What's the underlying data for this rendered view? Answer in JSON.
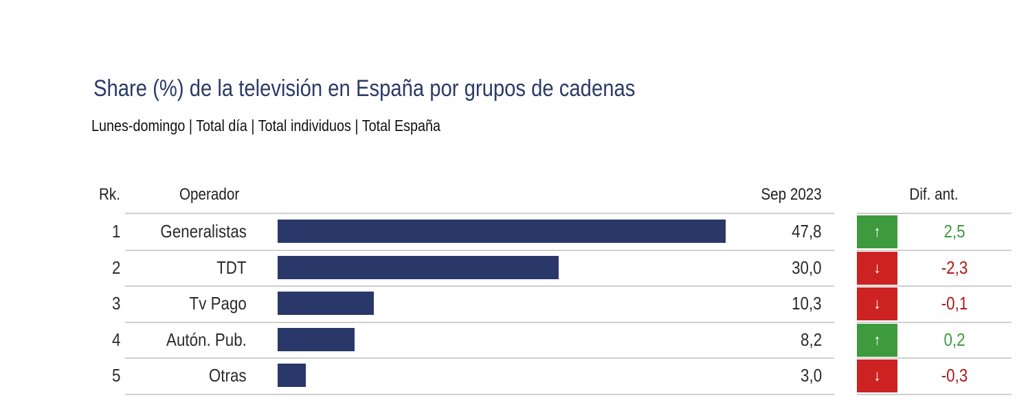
{
  "chart_data": {
    "type": "bar",
    "orientation": "horizontal",
    "title": "Share (%) de la televisión en España por grupos de cadenas",
    "subtitle": "Lunes-domingo | Total día | Total individuos | Total España",
    "headers": {
      "rank": "Rk.",
      "operator": "Operador",
      "value": "Sep 2023",
      "diff": "Dif. ant."
    },
    "xlim": [
      0,
      50
    ],
    "rows": [
      {
        "rank": "1",
        "operator": "Generalistas",
        "value": 47.8,
        "value_label": "47,8",
        "diff": 2.5,
        "diff_label": "2,5",
        "trend": "up"
      },
      {
        "rank": "2",
        "operator": "TDT",
        "value": 30.0,
        "value_label": "30,0",
        "diff": -2.3,
        "diff_label": "-2,3",
        "trend": "down"
      },
      {
        "rank": "3",
        "operator": "Tv Pago",
        "value": 10.3,
        "value_label": "10,3",
        "diff": -0.1,
        "diff_label": "-0,1",
        "trend": "down"
      },
      {
        "rank": "4",
        "operator": "Autón. Pub.",
        "value": 8.2,
        "value_label": "8,2",
        "diff": 0.2,
        "diff_label": "0,2",
        "trend": "up"
      },
      {
        "rank": "5",
        "operator": "Otras",
        "value": 3.0,
        "value_label": "3,0",
        "diff": -0.3,
        "diff_label": "-0,3",
        "trend": "down"
      }
    ]
  },
  "colors": {
    "bar": "#2a3769",
    "up": "#3d9a3d",
    "down": "#cc2222",
    "up_text": "#3d9a3d",
    "down_text": "#b01818"
  },
  "icons": {
    "up": "↑",
    "down": "↓"
  }
}
